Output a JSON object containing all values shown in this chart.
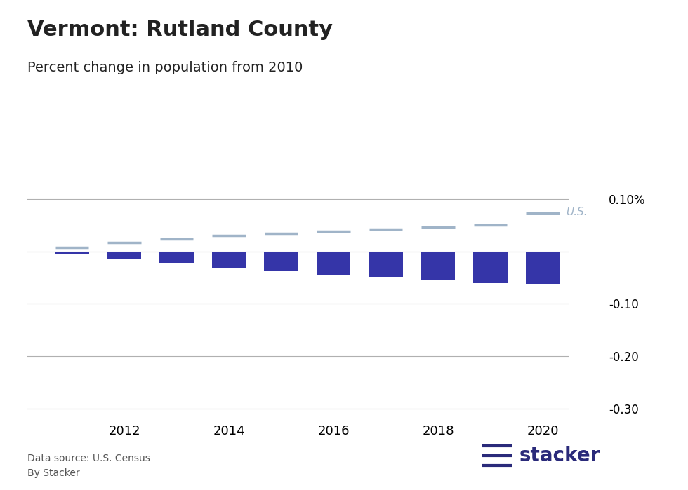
{
  "title": "Vermont: Rutland County",
  "subtitle": "Percent change in population from 2010",
  "bar_color": "#3535a8",
  "us_line_color": "#a0b4c8",
  "us_label_color": "#a0b4c8",
  "background_color": "#ffffff",
  "years": [
    2011,
    2012,
    2013,
    2014,
    2015,
    2016,
    2017,
    2018,
    2019,
    2020
  ],
  "county_values": [
    -0.004,
    -0.014,
    -0.022,
    -0.033,
    -0.038,
    -0.044,
    -0.049,
    -0.054,
    -0.059,
    -0.062
  ],
  "us_values": [
    0.008,
    0.017,
    0.024,
    0.03,
    0.035,
    0.039,
    0.043,
    0.047,
    0.051,
    0.073
  ],
  "ylim": [
    -0.325,
    0.125
  ],
  "yticks": [
    0.1,
    0.0,
    -0.1,
    -0.2,
    -0.3
  ],
  "ytick_labels": [
    "0.10%",
    "",
    "-0.10",
    "-0.20",
    "-0.30"
  ],
  "xlabel_ticks": [
    2012,
    2014,
    2016,
    2018,
    2020
  ],
  "footer_left_1": "Data source: U.S. Census",
  "footer_left_2": "By Stacker",
  "stacker_logo_color": "#2a2a7a",
  "title_fontsize": 22,
  "subtitle_fontsize": 14,
  "grid_color": "#b0b0b0",
  "zero_line_color": "#888888",
  "text_color": "#222222",
  "footer_color": "#555555"
}
